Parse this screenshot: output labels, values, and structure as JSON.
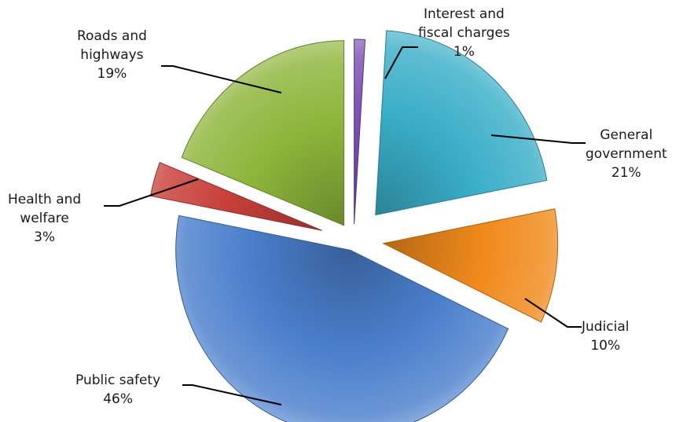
{
  "chart_data": {
    "type": "pie",
    "style": "exploded-3d",
    "title": "",
    "slices": [
      {
        "name": "Interest and fiscal charges",
        "lines": [
          "Interest and",
          "fiscal charges"
        ],
        "value": 1,
        "pct_label": "1%",
        "color": "#7a4fb0"
      },
      {
        "name": "General government",
        "lines": [
          "General",
          "government"
        ],
        "value": 21,
        "pct_label": "21%",
        "color": "#3aaec8"
      },
      {
        "name": "Judicial",
        "lines": [
          "Judicial"
        ],
        "value": 10,
        "pct_label": "10%",
        "color": "#f08a1c"
      },
      {
        "name": "Public safety",
        "lines": [
          "Public safety"
        ],
        "value": 46,
        "pct_label": "46%",
        "color": "#4a7fcc"
      },
      {
        "name": "Health and welfare",
        "lines": [
          "Health and",
          "welfare"
        ],
        "value": 3,
        "pct_label": "3%",
        "color": "#c8403a"
      },
      {
        "name": "Roads and highways",
        "lines": [
          "Roads and",
          "highways"
        ],
        "value": 19,
        "pct_label": "19%",
        "color": "#8db53a"
      }
    ]
  }
}
